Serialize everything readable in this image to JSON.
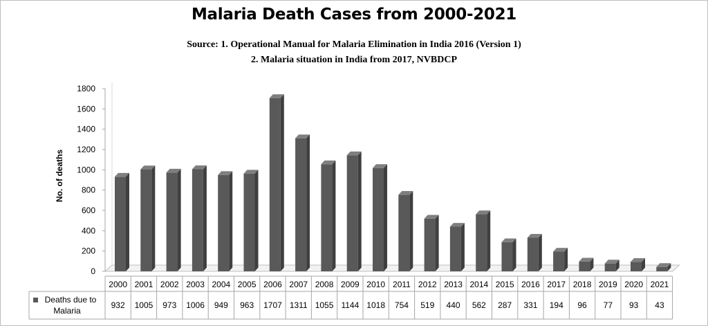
{
  "chart_data": {
    "type": "bar",
    "title": "Malaria Death Cases from 2000-2021",
    "source_lines": [
      "Source: 1. Operational Manual for Malaria Elimination in India 2016 (Version 1)",
      "2. Malaria situation in India from 2017, NVBDCP"
    ],
    "xlabel": "",
    "ylabel": "No. of deaths",
    "ylim": [
      0,
      1800
    ],
    "yticks": [
      0,
      200,
      400,
      600,
      800,
      1000,
      1200,
      1400,
      1600,
      1800
    ],
    "categories": [
      "2000",
      "2001",
      "2002",
      "2003",
      "2004",
      "2005",
      "2006",
      "2007",
      "2008",
      "2009",
      "2010",
      "2011",
      "2012",
      "2013",
      "2014",
      "2015",
      "2016",
      "2017",
      "2018",
      "2019",
      "2020",
      "2021"
    ],
    "series": [
      {
        "name": "Deaths due to Malaria",
        "values": [
          932,
          1005,
          973,
          1006,
          949,
          963,
          1707,
          1311,
          1055,
          1144,
          1018,
          754,
          519,
          440,
          562,
          287,
          331,
          194,
          96,
          77,
          93,
          43
        ]
      }
    ],
    "grid": false,
    "legend": "data-table",
    "bar_color": "#595959"
  }
}
